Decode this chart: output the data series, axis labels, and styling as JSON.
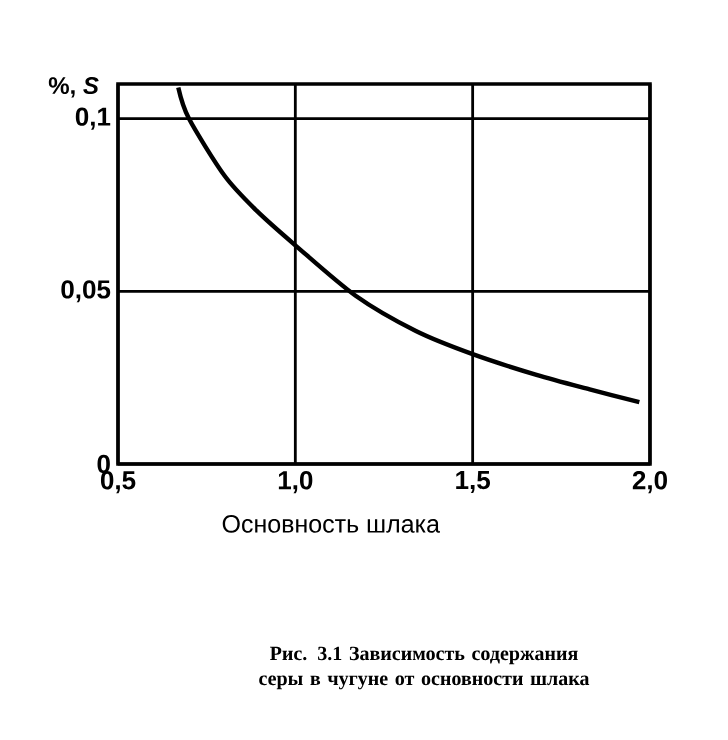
{
  "chart_data": {
    "type": "line",
    "xlabel": "Основность шлака",
    "ylabel": "%, *S*",
    "annotations": [
      "Рис. 3.1 Зависимость содержания серы в чугуне от основности шлака"
    ],
    "x": [
      0.67,
      0.7,
      0.8,
      0.89,
      1.0,
      1.17,
      1.34,
      1.5,
      1.68,
      1.83,
      1.97
    ],
    "series": [
      {
        "color": "#000000",
        "values": [
          0.109,
          0.1,
          0.0835,
          0.0734,
          0.0633,
          0.0487,
          0.0385,
          0.0318,
          0.0258,
          0.0216,
          0.0179
        ]
      }
    ],
    "xlim": [
      0.5,
      2.0
    ],
    "ylim": [
      0,
      0.11
    ],
    "xticks": [
      {
        "value": 0.5,
        "label": "0,5"
      },
      {
        "value": 1.0,
        "label": "1,0"
      },
      {
        "value": 1.5,
        "label": "1,5"
      },
      {
        "value": 2.0,
        "label": "2,0"
      }
    ],
    "yticks": [
      0,
      {
        "value": 0.05,
        "label": "0,05"
      },
      {
        "value": 0.1,
        "label": "0,1"
      }
    ],
    "grid": true,
    "marker": "none",
    "line_style": "solid"
  }
}
